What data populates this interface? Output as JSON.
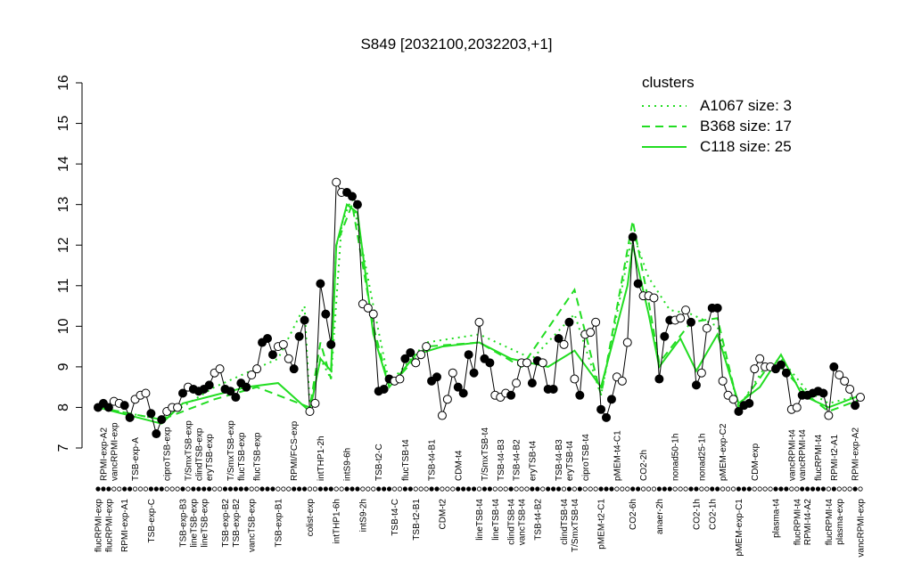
{
  "chart_data": {
    "type": "line",
    "title": "S849 [2032100,2032203,+1]",
    "categories": [
      "flucRPMI-exp",
      "RPMI-exp-A2",
      "flucRPMI-exp",
      "vancRPMI-exp",
      null,
      "RPMI-exp-A1",
      null,
      "TSB-exp-A",
      null,
      null,
      "TSB-exp-C",
      null,
      null,
      "ciproTSB-exp",
      null,
      null,
      "TSB-exp-B3",
      "T/SmxTSB-exp",
      "lineTSB-exp",
      "clindTSB-exp",
      "lineTSB-exp",
      "eryTSB-exp",
      null,
      null,
      "TSB-exp-B2",
      "T/SmxTSB-exp",
      "TSB-exp-B2",
      "flucTSB-exp",
      null,
      "vancTSB-exp",
      "flucTSB-exp",
      null,
      null,
      null,
      "TSB-exp-B1",
      null,
      null,
      "RPMI/FCS-exp",
      null,
      null,
      "colist-exp",
      null,
      "intTHP1-2h",
      null,
      null,
      "intTHP1-6h",
      null,
      "intS9-6h",
      null,
      null,
      "intS9-2h",
      null,
      null,
      "TSB-t2-C",
      null,
      null,
      "TSB-t4-C",
      null,
      "flucTSB-t4",
      null,
      "TSB-t2-B1",
      null,
      null,
      "TSB-t4-B1",
      null,
      "CDM-t2",
      null,
      null,
      "CDM-t4",
      null,
      null,
      null,
      "lineTSB-t4",
      "T/SmxTSB-t4",
      null,
      "lineTSB-t4",
      "TSB-t4-B3",
      null,
      "clindTSB-t4",
      "TSB-t4-B2",
      "vancTSB-t4",
      null,
      "eryTSB-t4",
      "TSB-t4-B2",
      null,
      null,
      null,
      "TSB-t4-B3",
      "clindTSB-t4",
      "eryTSB-t4",
      "T/SmxTSB-t4",
      null,
      "ciproTSB-t4",
      null,
      null,
      "pMEM-t2-C1",
      null,
      null,
      "pMEM-t4-C1",
      null,
      null,
      "CO2-6h",
      null,
      "CO2-2h",
      null,
      null,
      "anaer-2h",
      null,
      null,
      "nonad50-1h",
      null,
      null,
      null,
      "CO2-1h",
      "nonad25-1h",
      null,
      "CO2-1h",
      null,
      "pMEM-exp-C2",
      null,
      null,
      "pMEM-exp-C1",
      null,
      null,
      "CDM-exp",
      null,
      null,
      null,
      "plasma-t4",
      null,
      null,
      "vancRPMI-t4",
      "flucRPMI-t4",
      "vancRPMI-t4",
      "RPMI-t4-A2",
      null,
      "flucRPMI-t4",
      null,
      "flucRPMI-t4",
      "RPMI-t2-A1",
      "plasma-exp",
      null,
      null,
      "RPMI-exp-A2",
      "vancRPMI-exp"
    ],
    "values": [
      8.0,
      8.1,
      8.0,
      8.15,
      8.1,
      8.05,
      7.75,
      8.2,
      8.3,
      8.35,
      7.85,
      7.35,
      7.7,
      7.9,
      8.0,
      8.0,
      8.35,
      8.5,
      8.45,
      8.4,
      8.45,
      8.55,
      8.85,
      8.95,
      8.45,
      8.4,
      8.25,
      8.6,
      8.5,
      8.8,
      8.95,
      9.6,
      9.7,
      9.3,
      9.5,
      9.55,
      9.2,
      8.95,
      9.75,
      10.15,
      7.9,
      8.1,
      11.05,
      10.3,
      9.55,
      13.55,
      13.3,
      13.3,
      13.2,
      13.0,
      10.55,
      10.45,
      10.3,
      8.4,
      8.45,
      8.7,
      8.65,
      8.7,
      9.2,
      9.35,
      9.1,
      9.3,
      9.5,
      8.65,
      8.75,
      7.8,
      8.2,
      8.85,
      8.5,
      8.35,
      9.3,
      8.85,
      10.1,
      9.2,
      9.1,
      8.3,
      8.25,
      8.35,
      8.3,
      8.6,
      9.1,
      9.1,
      8.6,
      9.15,
      9.1,
      8.45,
      8.45,
      9.7,
      9.55,
      10.1,
      8.7,
      8.3,
      9.8,
      9.85,
      10.1,
      7.95,
      7.75,
      8.2,
      8.75,
      8.65,
      9.6,
      12.2,
      11.05,
      10.75,
      10.75,
      10.7,
      8.7,
      9.75,
      10.15,
      10.15,
      10.2,
      10.4,
      10.1,
      8.55,
      8.85,
      9.95,
      10.45,
      10.45,
      8.65,
      8.3,
      8.2,
      7.9,
      8.05,
      8.1,
      8.95,
      9.2,
      9.0,
      9.0,
      8.95,
      9.05,
      8.85,
      7.95,
      8.0,
      8.3,
      8.3,
      8.35,
      8.4,
      8.35,
      7.8,
      9.0,
      8.8,
      8.65,
      8.45,
      8.05,
      8.25
    ],
    "filled": [
      1,
      1,
      1,
      0,
      0,
      1,
      1,
      0,
      0,
      0,
      1,
      1,
      1,
      0,
      0,
      0,
      1,
      0,
      1,
      1,
      1,
      1,
      0,
      0,
      1,
      1,
      1,
      1,
      1,
      0,
      0,
      1,
      1,
      1,
      0,
      0,
      0,
      1,
      1,
      1,
      0,
      0,
      1,
      1,
      1,
      0,
      0,
      1,
      1,
      1,
      0,
      0,
      0,
      1,
      1,
      1,
      0,
      0,
      1,
      1,
      0,
      0,
      0,
      1,
      1,
      0,
      0,
      0,
      1,
      1,
      1,
      1,
      0,
      1,
      1,
      0,
      0,
      0,
      1,
      0,
      0,
      0,
      1,
      1,
      0,
      1,
      1,
      1,
      0,
      1,
      0,
      1,
      0,
      0,
      0,
      1,
      1,
      1,
      0,
      0,
      0,
      1,
      1,
      0,
      0,
      0,
      1,
      1,
      1,
      0,
      0,
      0,
      1,
      1,
      0,
      0,
      1,
      1,
      0,
      0,
      0,
      1,
      1,
      1,
      0,
      0,
      0,
      0,
      1,
      1,
      1,
      0,
      0,
      1,
      1,
      1,
      1,
      1,
      0,
      1,
      0,
      0,
      0,
      1,
      0
    ],
    "color": "#000000",
    "legend_title": "clusters",
    "legend": "top-right",
    "series": [
      {
        "name": "A1067 size: 3",
        "color": "#22dd22",
        "dash": "dotted",
        "x": [
          0,
          12,
          22,
          34,
          39,
          40,
          42,
          44,
          46,
          48,
          52,
          55,
          62,
          72,
          82,
          90,
          95,
          101,
          104,
          108,
          112,
          117,
          121,
          126,
          129,
          134,
          138,
          144
        ],
        "values": [
          8.0,
          7.7,
          8.5,
          9.2,
          10.5,
          8.0,
          9.2,
          8.7,
          12.5,
          13.2,
          10.5,
          8.6,
          9.6,
          9.8,
          9.2,
          10.3,
          8.3,
          12.3,
          11.2,
          10.4,
          10.3,
          10.0,
          8.0,
          9.0,
          9.2,
          8.4,
          8.1,
          8.3
        ]
      },
      {
        "name": "B368 size: 17",
        "color": "#22dd22",
        "dash": "dashed",
        "x": [
          0,
          12,
          22,
          30,
          40,
          42,
          44,
          45,
          48,
          52,
          55,
          62,
          72,
          80,
          90,
          95,
          101,
          104,
          106,
          112,
          117,
          121,
          126,
          129,
          134,
          138,
          144
        ],
        "values": [
          8.0,
          7.7,
          8.2,
          8.5,
          8.0,
          9.6,
          8.7,
          12.0,
          13.0,
          10.0,
          8.5,
          9.5,
          9.6,
          9.0,
          10.9,
          8.3,
          12.6,
          10.6,
          9.1,
          10.1,
          10.2,
          8.0,
          8.9,
          9.0,
          8.3,
          7.9,
          8.2
        ]
      },
      {
        "name": "C118 size: 25",
        "color": "#22dd22",
        "dash": "solid",
        "x": [
          0,
          6,
          12,
          16,
          22,
          28,
          34,
          40,
          42,
          44,
          45,
          47,
          49,
          52,
          55,
          60,
          65,
          72,
          78,
          85,
          90,
          95,
          100,
          101,
          104,
          106,
          110,
          113,
          117,
          121,
          125,
          129,
          133,
          138,
          144
        ],
        "values": [
          8.0,
          7.8,
          7.6,
          8.1,
          8.3,
          8.5,
          8.6,
          7.9,
          9.2,
          8.9,
          12.0,
          13.0,
          12.8,
          9.8,
          8.5,
          9.3,
          9.5,
          9.6,
          9.2,
          9.0,
          9.4,
          8.5,
          11.0,
          12.0,
          10.3,
          9.0,
          9.7,
          8.9,
          9.8,
          8.1,
          8.5,
          9.3,
          8.3,
          8.0,
          8.3
        ]
      }
    ],
    "ylim": [
      7,
      16
    ],
    "yticks": [
      7,
      8,
      9,
      10,
      11,
      12,
      13,
      14,
      15,
      16
    ]
  }
}
